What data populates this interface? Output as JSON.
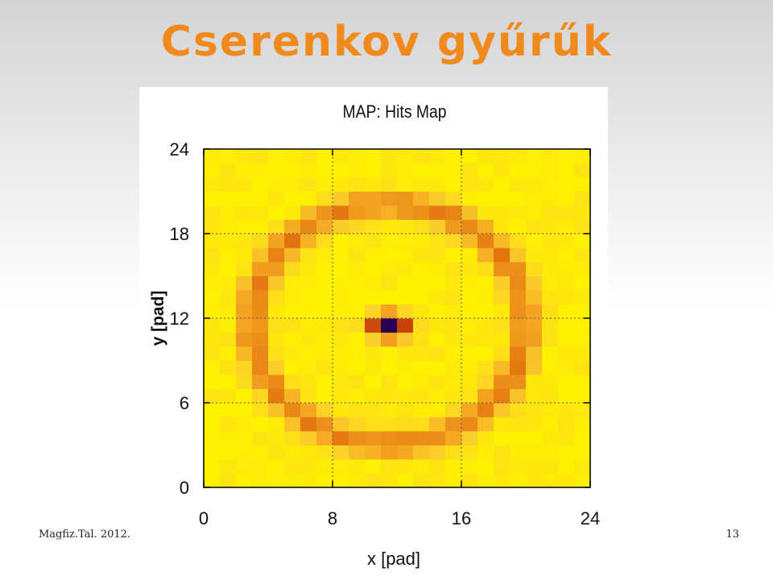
{
  "slide": {
    "title": "Cserenkov gyűrűk",
    "footer_left": "Magfiz.Tal. 2012.",
    "page_number": "13"
  },
  "chart_data": {
    "type": "heatmap",
    "title": "MAP: Hits Map",
    "xlabel": "x [pad]",
    "ylabel": "y [pad]",
    "xlim": [
      0,
      24
    ],
    "ylim": [
      0,
      24
    ],
    "xticks": [
      "0",
      "8",
      "16",
      "24"
    ],
    "yticks": [
      "0",
      "6",
      "12",
      "18",
      "24"
    ],
    "grid": true,
    "legend": "none",
    "colormap": [
      "#000000",
      "#7a00ff",
      "#a21cc8",
      "#b41818",
      "#cd4a0a",
      "#e57a10",
      "#f5a823",
      "#fbd02a",
      "#fff200"
    ],
    "pattern": "Cherenkov ring of hits on a 24x24 pad map: high-intensity ring of radius ~8.5 pads centred at about (11.5, 11.5), peak hit cluster at the centre, uniform low-level background.",
    "ring": {
      "cx": 11.5,
      "cy": 11.6,
      "radius": 8.5
    },
    "center_peak": {
      "x": 11.5,
      "y": 11.5
    }
  }
}
